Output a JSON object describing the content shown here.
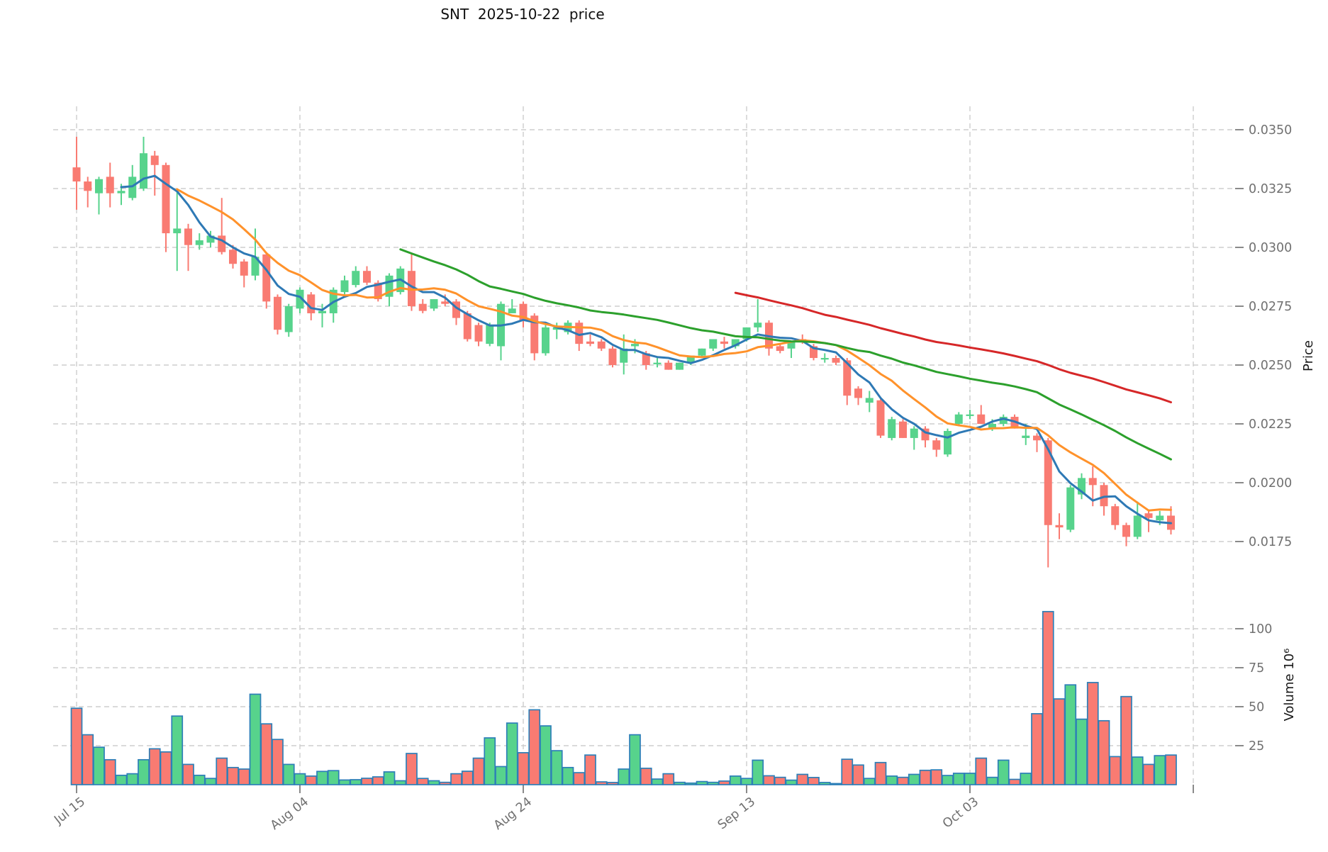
{
  "title": "SNT  2025-10-22  price",
  "price_axis": {
    "label": "Price",
    "ticks": [
      {
        "label": "0.0350",
        "value": 0.035
      },
      {
        "label": "0.0325",
        "value": 0.0325
      },
      {
        "label": "0.0300",
        "value": 0.03
      },
      {
        "label": "0.0275",
        "value": 0.0275
      },
      {
        "label": "0.0250",
        "value": 0.025
      },
      {
        "label": "0.0225",
        "value": 0.0225
      },
      {
        "label": "0.0200",
        "value": 0.02
      },
      {
        "label": "0.0175",
        "value": 0.0175
      }
    ]
  },
  "volume_axis": {
    "label": "Volume  10⁶",
    "ticks": [
      {
        "label": "100",
        "value": 100
      },
      {
        "label": "75",
        "value": 75
      },
      {
        "label": "50",
        "value": 50
      },
      {
        "label": "25",
        "value": 25
      }
    ]
  },
  "x_axis": {
    "ticks": [
      {
        "label": "Jul 15",
        "index": 0
      },
      {
        "label": "Aug 04",
        "index": 20
      },
      {
        "label": "Aug 24",
        "index": 40
      },
      {
        "label": "Sep 13",
        "index": 60
      },
      {
        "label": "Oct 03",
        "index": 80
      },
      {
        "label": "",
        "index": 100
      }
    ]
  },
  "colors": {
    "up": "#57d38c",
    "down": "#f97b72",
    "bar_border": "#2d7fb8",
    "sma5": "#2e79b5",
    "sma10": "#ff922b",
    "sma30": "#2ca02c",
    "sma60": "#d62728",
    "grid": "#cdcdcd",
    "tick": "#8a8a8a",
    "tick_text": "#707070",
    "axis_label_text": "#1a1a1a",
    "title_text": "#111111"
  },
  "chart_data": {
    "type": "candlestick+volume",
    "symbol": "SNT",
    "as_of_date": "2025-10-22",
    "start_date": "2025-07-15",
    "end_date": "2025-10-22",
    "n_candles": 99,
    "price_ylim": [
      0.016,
      0.0355
    ],
    "volume_ylim_millions": [
      0,
      118
    ],
    "grid": true,
    "legend": false,
    "moving_averages": [
      {
        "name": "SMA5",
        "window": 5,
        "color_key": "sma5"
      },
      {
        "name": "SMA10",
        "window": 10,
        "color_key": "sma10"
      },
      {
        "name": "SMA30",
        "window": 30,
        "color_key": "sma30"
      },
      {
        "name": "SMA60",
        "window": 60,
        "color_key": "sma60"
      }
    ],
    "open": [
      0.0334,
      0.0328,
      0.0323,
      0.033,
      0.0323,
      0.0321,
      0.0325,
      0.0339,
      0.0335,
      0.0306,
      0.0308,
      0.0301,
      0.0302,
      0.0305,
      0.0299,
      0.0294,
      0.0288,
      0.0297,
      0.0279,
      0.0264,
      0.0274,
      0.028,
      0.0272,
      0.0272,
      0.0281,
      0.0284,
      0.029,
      0.0285,
      0.0279,
      0.0281,
      0.029,
      0.0276,
      0.0274,
      0.0277,
      0.0277,
      0.0272,
      0.0267,
      0.0259,
      0.0258,
      0.0272,
      0.0276,
      0.0271,
      0.0255,
      0.0265,
      0.0264,
      0.0268,
      0.026,
      0.026,
      0.0257,
      0.0251,
      0.0258,
      0.0255,
      0.0251,
      0.0251,
      0.0248,
      0.0251,
      0.0254,
      0.0257,
      0.026,
      0.0258,
      0.0261,
      0.0266,
      0.0268,
      0.0258,
      0.0257,
      0.0261,
      0.0258,
      0.0253,
      0.0253,
      0.0252,
      0.024,
      0.0234,
      0.0235,
      0.0219,
      0.0226,
      0.0219,
      0.0223,
      0.0218,
      0.0212,
      0.0225,
      0.0229,
      0.0229,
      0.0223,
      0.0225,
      0.0228,
      0.0219,
      0.022,
      0.0218,
      0.0182,
      0.018,
      0.0195,
      0.0202,
      0.0199,
      0.019,
      0.0182,
      0.0177,
      0.0187,
      0.0184,
      0.0186
    ],
    "high": [
      0.0347,
      0.033,
      0.033,
      0.0336,
      0.0327,
      0.0335,
      0.0347,
      0.0341,
      0.0336,
      0.0324,
      0.031,
      0.0306,
      0.0307,
      0.0321,
      0.0301,
      0.0295,
      0.0308,
      0.0298,
      0.028,
      0.0276,
      0.0283,
      0.0281,
      0.0276,
      0.0283,
      0.0288,
      0.0292,
      0.0292,
      0.0286,
      0.0289,
      0.0292,
      0.0297,
      0.0278,
      0.0278,
      0.028,
      0.0278,
      0.0273,
      0.0268,
      0.0268,
      0.0277,
      0.0278,
      0.0277,
      0.0272,
      0.0267,
      0.0268,
      0.0269,
      0.0269,
      0.0263,
      0.0261,
      0.0258,
      0.0263,
      0.0261,
      0.0256,
      0.0253,
      0.0252,
      0.0251,
      0.0254,
      0.0257,
      0.0261,
      0.0262,
      0.0261,
      0.0266,
      0.0278,
      0.0269,
      0.0259,
      0.0258,
      0.0263,
      0.0259,
      0.0255,
      0.0254,
      0.0253,
      0.0241,
      0.0239,
      0.0236,
      0.0228,
      0.0227,
      0.0224,
      0.0224,
      0.0219,
      0.0223,
      0.023,
      0.0231,
      0.0233,
      0.0227,
      0.0229,
      0.0229,
      0.0225,
      0.0221,
      0.0219,
      0.0187,
      0.0199,
      0.0204,
      0.0207,
      0.02,
      0.0191,
      0.0183,
      0.0192,
      0.0188,
      0.0188,
      0.019
    ],
    "low": [
      0.0316,
      0.0317,
      0.0314,
      0.0317,
      0.0318,
      0.032,
      0.0324,
      0.0322,
      0.0298,
      0.029,
      0.029,
      0.0299,
      0.03,
      0.0297,
      0.0291,
      0.0283,
      0.0286,
      0.0274,
      0.0263,
      0.0262,
      0.0272,
      0.0269,
      0.0266,
      0.0268,
      0.028,
      0.0283,
      0.0284,
      0.0277,
      0.0275,
      0.028,
      0.0273,
      0.0272,
      0.0273,
      0.0275,
      0.0267,
      0.026,
      0.0258,
      0.0258,
      0.0252,
      0.0272,
      0.0266,
      0.0252,
      0.0254,
      0.0261,
      0.0263,
      0.0256,
      0.0258,
      0.0256,
      0.0249,
      0.0246,
      0.0255,
      0.0248,
      0.0249,
      0.0248,
      0.0248,
      0.025,
      0.0253,
      0.0256,
      0.0257,
      0.0257,
      0.026,
      0.0264,
      0.0254,
      0.0255,
      0.0253,
      0.0259,
      0.0252,
      0.0251,
      0.025,
      0.0233,
      0.0233,
      0.023,
      0.0219,
      0.0218,
      0.0219,
      0.0214,
      0.0215,
      0.0211,
      0.0211,
      0.0224,
      0.0227,
      0.0225,
      0.0222,
      0.0224,
      0.0223,
      0.0216,
      0.0213,
      0.0164,
      0.0176,
      0.0179,
      0.0193,
      0.019,
      0.0186,
      0.018,
      0.0173,
      0.0176,
      0.0179,
      0.0182,
      0.0178
    ],
    "close": [
      0.0328,
      0.0324,
      0.0329,
      0.0323,
      0.0324,
      0.033,
      0.034,
      0.0335,
      0.0306,
      0.0308,
      0.0301,
      0.0303,
      0.0305,
      0.0298,
      0.0293,
      0.0288,
      0.0296,
      0.0277,
      0.0265,
      0.0275,
      0.0282,
      0.0272,
      0.0273,
      0.0282,
      0.0286,
      0.029,
      0.0285,
      0.0278,
      0.0288,
      0.0291,
      0.0275,
      0.0273,
      0.0278,
      0.0276,
      0.027,
      0.0261,
      0.026,
      0.0267,
      0.0276,
      0.0274,
      0.0269,
      0.0255,
      0.0266,
      0.0266,
      0.0268,
      0.0259,
      0.0259,
      0.0257,
      0.025,
      0.0257,
      0.0259,
      0.025,
      0.0251,
      0.0248,
      0.0251,
      0.0254,
      0.0257,
      0.0261,
      0.0259,
      0.0261,
      0.0266,
      0.0268,
      0.0257,
      0.0256,
      0.026,
      0.026,
      0.0253,
      0.0253,
      0.0251,
      0.0237,
      0.0236,
      0.0236,
      0.022,
      0.0227,
      0.0219,
      0.0223,
      0.0218,
      0.0214,
      0.0222,
      0.0229,
      0.0229,
      0.0225,
      0.0225,
      0.0228,
      0.0223,
      0.022,
      0.0218,
      0.0182,
      0.0181,
      0.0198,
      0.0202,
      0.0199,
      0.019,
      0.0182,
      0.0177,
      0.0186,
      0.0185,
      0.0186,
      0.018
    ],
    "volume_millions": [
      49,
      32,
      24,
      16,
      6,
      7,
      16,
      23,
      21,
      44,
      13,
      6,
      4,
      17,
      11,
      10,
      58,
      39,
      29,
      13,
      7,
      5.5,
      8.5,
      9,
      3,
      3.2,
      4.1,
      5,
      8.2,
      2.5,
      20,
      4,
      2.5,
      1.5,
      7,
      8.6,
      17,
      30,
      11.6,
      39.5,
      20.5,
      48,
      37.7,
      21.8,
      11,
      7.7,
      19,
      1.8,
      1.4,
      10,
      32,
      10.5,
      3.6,
      7,
      1.5,
      1,
      2,
      1.5,
      2.3,
      5.5,
      4,
      15.7,
      5.7,
      4.7,
      2.9,
      6.6,
      4.6,
      1.4,
      0.7,
      16.3,
      12.6,
      4,
      14.2,
      5.5,
      4.7,
      6.6,
      9.2,
      9.5,
      5.9,
      7.3,
      7.3,
      17,
      4.7,
      15.7,
      3.4,
      7.3,
      45.5,
      111,
      55,
      64,
      42,
      65.5,
      41,
      18,
      56.5,
      17.7,
      13,
      18.6,
      19
    ]
  }
}
